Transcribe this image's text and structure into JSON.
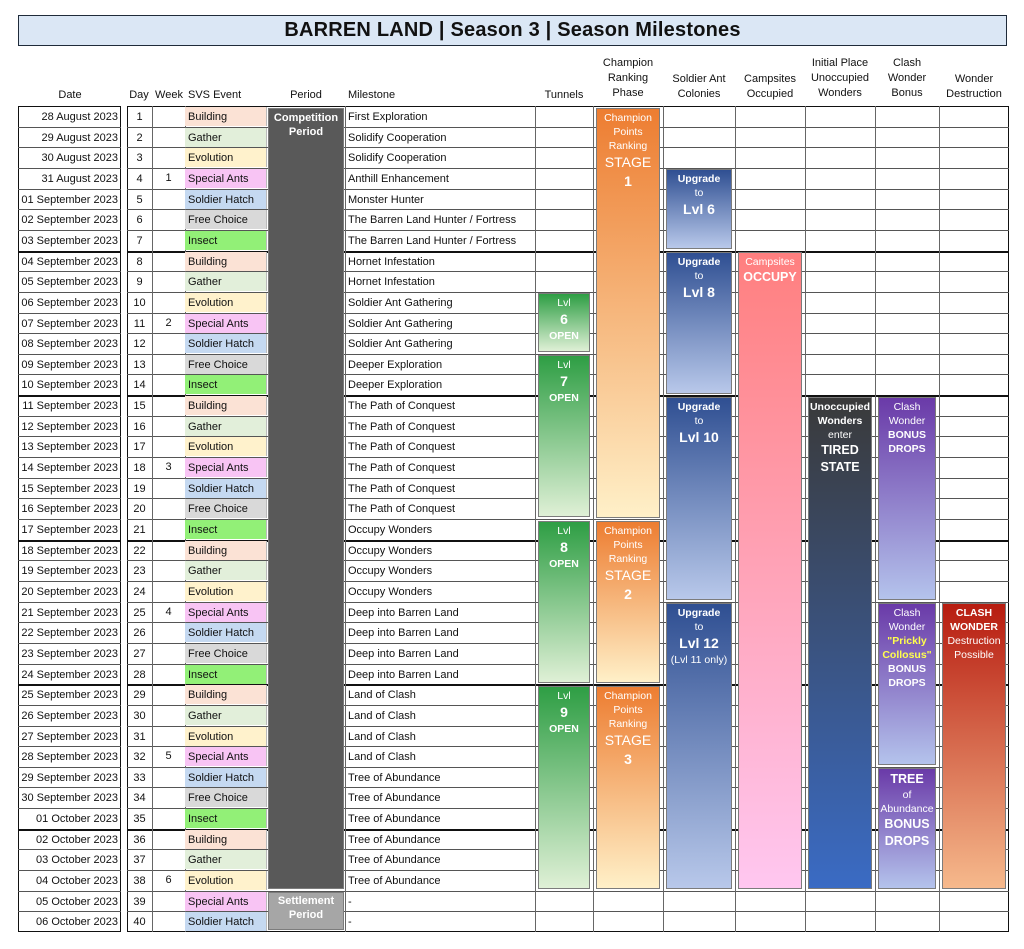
{
  "title": "BARREN LAND | Season 3 | Season Milestones",
  "headers": {
    "date": "Date",
    "day": "Day",
    "week": "Week",
    "svs_event": "SVS Event",
    "period": "Period",
    "milestone": "Milestone",
    "tunnels": "Tunnels",
    "champion": "Champion\nRanking\nPhase",
    "soldier_ant": "Soldier Ant\nColonies",
    "campsites": "Campsites\nOccupied",
    "unoccupied": "Initial Place\nUnoccupied\nWonders",
    "clash_bonus": "Clash\nWonder\nBonus",
    "destruction": "Wonder\nDestruction"
  },
  "svs_colors": {
    "Building": "#fbe2d5",
    "Gather": "#e2efda",
    "Evolution": "#fff2cc",
    "Special Ants": "#f8c4f4",
    "Soldier Hatch": "#c5d9f1",
    "Free Choice": "#d9d9d9",
    "Insect": "#92f077"
  },
  "weeks": [
    "1",
    "2",
    "3",
    "4",
    "5",
    "6"
  ],
  "rows": [
    {
      "date": "28 August 2023",
      "day": "1",
      "svs": "Building",
      "milestone": "First Exploration"
    },
    {
      "date": "29 August 2023",
      "day": "2",
      "svs": "Gather",
      "milestone": "Solidify Cooperation"
    },
    {
      "date": "30 August 2023",
      "day": "3",
      "svs": "Evolution",
      "milestone": "Solidify Cooperation"
    },
    {
      "date": "31 August 2023",
      "day": "4",
      "svs": "Special Ants",
      "milestone": "Anthill Enhancement"
    },
    {
      "date": "01 September 2023",
      "day": "5",
      "svs": "Soldier Hatch",
      "milestone": "Monster Hunter"
    },
    {
      "date": "02 September 2023",
      "day": "6",
      "svs": "Free Choice",
      "milestone": "The Barren Land Hunter / Fortress"
    },
    {
      "date": "03 September 2023",
      "day": "7",
      "svs": "Insect",
      "milestone": "The Barren Land Hunter / Fortress"
    },
    {
      "date": "04 September 2023",
      "day": "8",
      "svs": "Building",
      "milestone": "Hornet Infestation"
    },
    {
      "date": "05 September 2023",
      "day": "9",
      "svs": "Gather",
      "milestone": "Hornet Infestation"
    },
    {
      "date": "06 September 2023",
      "day": "10",
      "svs": "Evolution",
      "milestone": "Soldier Ant Gathering"
    },
    {
      "date": "07 September 2023",
      "day": "11",
      "svs": "Special Ants",
      "milestone": "Soldier Ant Gathering"
    },
    {
      "date": "08 September 2023",
      "day": "12",
      "svs": "Soldier Hatch",
      "milestone": "Soldier Ant Gathering"
    },
    {
      "date": "09 September 2023",
      "day": "13",
      "svs": "Free Choice",
      "milestone": "Deeper Exploration"
    },
    {
      "date": "10 September 2023",
      "day": "14",
      "svs": "Insect",
      "milestone": "Deeper Exploration"
    },
    {
      "date": "11 September 2023",
      "day": "15",
      "svs": "Building",
      "milestone": "The Path of Conquest"
    },
    {
      "date": "12 September 2023",
      "day": "16",
      "svs": "Gather",
      "milestone": "The Path of Conquest"
    },
    {
      "date": "13 September 2023",
      "day": "17",
      "svs": "Evolution",
      "milestone": "The Path of Conquest"
    },
    {
      "date": "14 September 2023",
      "day": "18",
      "svs": "Special Ants",
      "milestone": "The Path of Conquest"
    },
    {
      "date": "15 September 2023",
      "day": "19",
      "svs": "Soldier Hatch",
      "milestone": "The Path of Conquest"
    },
    {
      "date": "16 September 2023",
      "day": "20",
      "svs": "Free Choice",
      "milestone": "The Path of Conquest"
    },
    {
      "date": "17 September 2023",
      "day": "21",
      "svs": "Insect",
      "milestone": "Occupy Wonders"
    },
    {
      "date": "18 September 2023",
      "day": "22",
      "svs": "Building",
      "milestone": "Occupy Wonders"
    },
    {
      "date": "19 September 2023",
      "day": "23",
      "svs": "Gather",
      "milestone": "Occupy Wonders"
    },
    {
      "date": "20 September 2023",
      "day": "24",
      "svs": "Evolution",
      "milestone": "Occupy Wonders"
    },
    {
      "date": "21 September 2023",
      "day": "25",
      "svs": "Special Ants",
      "milestone": "Deep into Barren Land"
    },
    {
      "date": "22 September 2023",
      "day": "26",
      "svs": "Soldier Hatch",
      "milestone": "Deep into Barren Land"
    },
    {
      "date": "23 September 2023",
      "day": "27",
      "svs": "Free Choice",
      "milestone": "Deep into Barren Land"
    },
    {
      "date": "24 September 2023",
      "day": "28",
      "svs": "Insect",
      "milestone": "Deep into Barren Land"
    },
    {
      "date": "25 September 2023",
      "day": "29",
      "svs": "Building",
      "milestone": "Land of Clash"
    },
    {
      "date": "26 September 2023",
      "day": "30",
      "svs": "Gather",
      "milestone": "Land of Clash"
    },
    {
      "date": "27 September 2023",
      "day": "31",
      "svs": "Evolution",
      "milestone": "Land of Clash"
    },
    {
      "date": "28 September 2023",
      "day": "32",
      "svs": "Special Ants",
      "milestone": "Land of Clash"
    },
    {
      "date": "29 September 2023",
      "day": "33",
      "svs": "Soldier Hatch",
      "milestone": "Tree of Abundance"
    },
    {
      "date": "30 September 2023",
      "day": "34",
      "svs": "Free Choice",
      "milestone": "Tree of Abundance"
    },
    {
      "date": "01 October 2023",
      "day": "35",
      "svs": "Insect",
      "milestone": "Tree of Abundance"
    },
    {
      "date": "02 October 2023",
      "day": "36",
      "svs": "Building",
      "milestone": "Tree of Abundance"
    },
    {
      "date": "03 October 2023",
      "day": "37",
      "svs": "Gather",
      "milestone": "Tree of Abundance"
    },
    {
      "date": "04 October 2023",
      "day": "38",
      "svs": "Evolution",
      "milestone": "Tree of Abundance"
    },
    {
      "date": "05 October 2023",
      "day": "39",
      "svs": "Special Ants",
      "milestone": "-"
    },
    {
      "date": "06 October 2023",
      "day": "40",
      "svs": "Soldier Hatch",
      "milestone": "-"
    }
  ],
  "blocks": {
    "competition": {
      "text": "Competition\nPeriod",
      "start": 1,
      "end": 38
    },
    "settlement": {
      "text": "Settlement\nPeriod",
      "start": 39,
      "end": 40
    },
    "tunnels": [
      {
        "lines": [
          "Lvl",
          "6",
          "OPEN"
        ],
        "start": 10,
        "end": 12
      },
      {
        "lines": [
          "Lvl",
          "7",
          "OPEN"
        ],
        "start": 13,
        "end": 20
      },
      {
        "lines": [
          "Lvl",
          "8",
          "OPEN"
        ],
        "start": 21,
        "end": 28
      },
      {
        "lines": [
          "Lvl",
          "9",
          "OPEN"
        ],
        "start": 29,
        "end": 38
      }
    ],
    "champion": [
      {
        "lines": [
          "Champion",
          "Points",
          "Ranking",
          "STAGE",
          "1"
        ],
        "start": 1,
        "end": 20
      },
      {
        "lines": [
          "Champion",
          "Points",
          "Ranking",
          "STAGE",
          "2"
        ],
        "start": 21,
        "end": 28
      },
      {
        "lines": [
          "Champion",
          "Points",
          "Ranking",
          "STAGE",
          "3"
        ],
        "start": 29,
        "end": 38
      }
    ],
    "soldier_ant": [
      {
        "lines": [
          "Upgrade",
          "to",
          "Lvl 6"
        ],
        "start": 4,
        "end": 7
      },
      {
        "lines": [
          "Upgrade",
          "to",
          "Lvl 8"
        ],
        "start": 8,
        "end": 14
      },
      {
        "lines": [
          "Upgrade",
          "to",
          "Lvl 10"
        ],
        "start": 15,
        "end": 24
      },
      {
        "lines": [
          "Upgrade",
          "to",
          "Lvl 12",
          "(Lvl 11 only)"
        ],
        "start": 25,
        "end": 38
      }
    ],
    "campsites": {
      "lines": [
        "Campsites",
        "OCCUPY"
      ],
      "start": 8,
      "end": 38
    },
    "unoccupied": {
      "lines": [
        "Unoccupied",
        "Wonders",
        "enter",
        "TIRED",
        "STATE"
      ],
      "start": 15,
      "end": 38
    },
    "clash_bonus": [
      {
        "lines": [
          "Clash",
          "Wonder",
          "BONUS",
          "DROPS"
        ],
        "start": 15,
        "end": 24
      },
      {
        "lines": [
          "Clash",
          "Wonder",
          "\"Prickly",
          "Collosus\"",
          "BONUS",
          "DROPS"
        ],
        "start": 25,
        "end": 32
      },
      {
        "lines": [
          "TREE",
          "of",
          "Abundance",
          "BONUS",
          "DROPS"
        ],
        "start": 33,
        "end": 38
      }
    ],
    "destruction": {
      "lines": [
        "CLASH",
        "WONDER",
        "Destruction",
        "Possible"
      ],
      "start": 25,
      "end": 38
    }
  },
  "colors": {
    "competition": "#595959",
    "settlement": "#a6a6a6",
    "tunnel_top": "#2e9e44",
    "tunnel_bottom": "#dff0d6",
    "champion_top": "#ed7d31",
    "champion_bottom": "#fff0c8",
    "soldier_top": "#2f4f92",
    "soldier_bottom": "#b8c8ea",
    "campsites_top": "#ff7f7f",
    "campsites_bottom": "#ffc7f0",
    "unoccupied_top": "#3a3a3a",
    "unoccupied_bottom": "#3a6bc4",
    "clash_top": "#6a3aa8",
    "clash_bottom": "#b4c3ec",
    "destruction_top": "#b71c10",
    "destruction_bottom": "#f6b98c",
    "prickly_text": "#ffff4d"
  }
}
